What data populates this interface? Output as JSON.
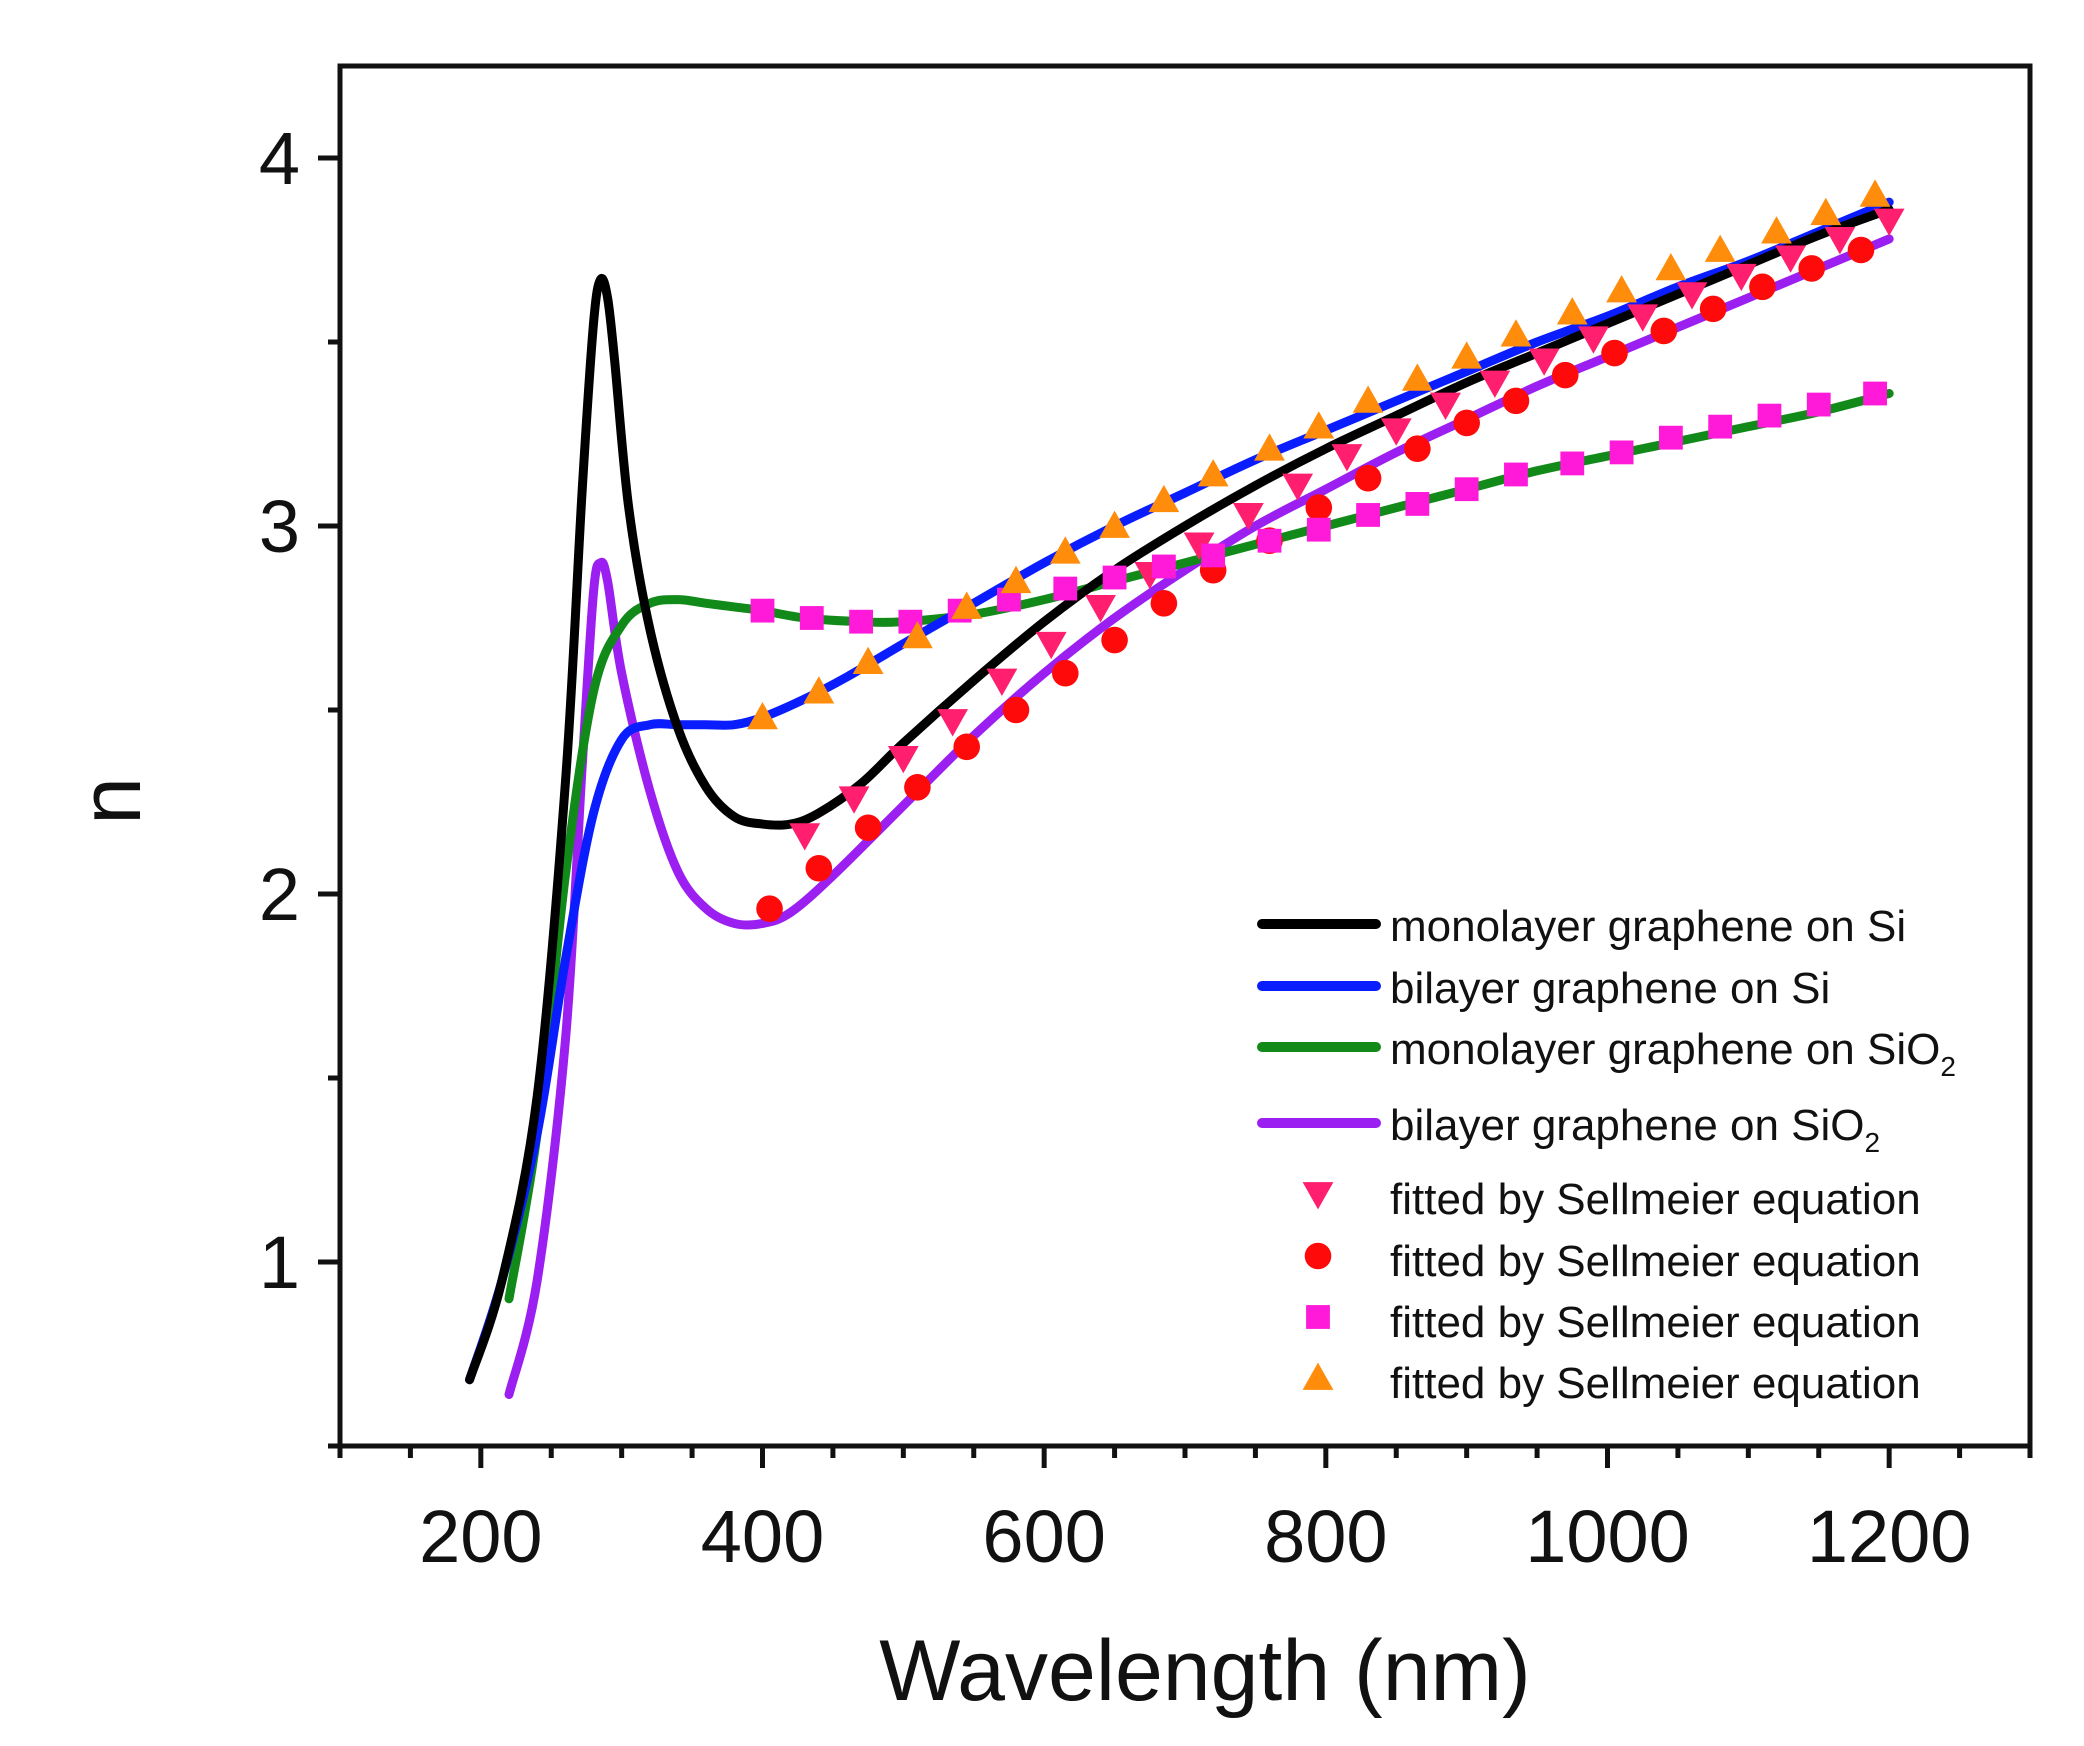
{
  "chart_data": {
    "type": "line",
    "title": "",
    "xlabel": "Wavelength (nm)",
    "ylabel": "n",
    "xlim": [
      100,
      1300
    ],
    "ylim": [
      0.5,
      4.25
    ],
    "xticks": [
      200,
      400,
      600,
      800,
      1000,
      1200
    ],
    "xtick_labels": [
      "200",
      "400",
      "600",
      "800",
      "1000",
      "1200"
    ],
    "yticks": [
      1,
      2,
      3,
      4
    ],
    "ytick_labels": [
      "1",
      "2",
      "3",
      "4"
    ],
    "grid": false,
    "legend_position": "bottom-right",
    "series": [
      {
        "name": "monolayer graphene on Si",
        "color": "#000000",
        "style": "line",
        "x": [
          192,
          215,
          240,
          260,
          272,
          280,
          285,
          290,
          295,
          305,
          320,
          340,
          360,
          380,
          400,
          420,
          440,
          470,
          500,
          550,
          600,
          650,
          700,
          750,
          800,
          850,
          900,
          950,
          1000,
          1050,
          1100,
          1150,
          1200
        ],
        "y": [
          0.68,
          0.95,
          1.45,
          2.3,
          3.1,
          3.55,
          3.67,
          3.62,
          3.45,
          3.05,
          2.72,
          2.45,
          2.29,
          2.21,
          2.19,
          2.19,
          2.22,
          2.3,
          2.41,
          2.58,
          2.74,
          2.88,
          3.0,
          3.11,
          3.21,
          3.3,
          3.39,
          3.47,
          3.55,
          3.63,
          3.71,
          3.79,
          3.86
        ]
      },
      {
        "name": "bilayer graphene on Si",
        "color": "#0a1dff",
        "style": "line",
        "x": [
          192,
          215,
          240,
          260,
          280,
          300,
          320,
          340,
          360,
          380,
          400,
          430,
          460,
          500,
          550,
          600,
          650,
          700,
          750,
          800,
          850,
          900,
          950,
          1000,
          1050,
          1100,
          1150,
          1200
        ],
        "y": [
          0.68,
          0.95,
          1.35,
          1.82,
          2.22,
          2.42,
          2.46,
          2.46,
          2.46,
          2.46,
          2.48,
          2.53,
          2.59,
          2.68,
          2.79,
          2.9,
          3.0,
          3.09,
          3.18,
          3.26,
          3.34,
          3.42,
          3.5,
          3.57,
          3.65,
          3.72,
          3.8,
          3.88
        ]
      },
      {
        "name": "monolayer graphene on SiO2",
        "color": "#128a1a",
        "style": "line",
        "x": [
          220,
          240,
          260,
          280,
          300,
          320,
          340,
          360,
          380,
          400,
          430,
          470,
          500,
          550,
          600,
          650,
          700,
          750,
          800,
          850,
          900,
          950,
          1000,
          1050,
          1100,
          1150,
          1200
        ],
        "y": [
          0.9,
          1.35,
          2.05,
          2.55,
          2.73,
          2.79,
          2.8,
          2.79,
          2.78,
          2.77,
          2.75,
          2.74,
          2.74,
          2.76,
          2.8,
          2.85,
          2.9,
          2.95,
          3.0,
          3.05,
          3.1,
          3.15,
          3.19,
          3.23,
          3.27,
          3.31,
          3.36
        ]
      },
      {
        "name": "bilayer graphene on SiO2",
        "color": "#9b1ff0",
        "style": "line",
        "x": [
          220,
          240,
          260,
          272,
          280,
          285,
          290,
          300,
          320,
          340,
          360,
          380,
          400,
          420,
          450,
          500,
          550,
          600,
          650,
          700,
          750,
          800,
          850,
          900,
          950,
          1000,
          1050,
          1100,
          1150,
          1200
        ],
        "y": [
          0.64,
          0.95,
          1.6,
          2.35,
          2.82,
          2.9,
          2.85,
          2.6,
          2.28,
          2.06,
          1.96,
          1.92,
          1.92,
          1.95,
          2.05,
          2.24,
          2.43,
          2.6,
          2.75,
          2.88,
          3.0,
          3.1,
          3.2,
          3.29,
          3.38,
          3.46,
          3.54,
          3.62,
          3.7,
          3.78
        ]
      },
      {
        "name": "fitted by Sellmeier equation",
        "color": "#ff1f6e",
        "marker": "triangle-down",
        "style": "markers",
        "x": [
          430,
          465,
          500,
          535,
          570,
          605,
          640,
          675,
          710,
          745,
          780,
          815,
          850,
          885,
          920,
          955,
          990,
          1025,
          1060,
          1095,
          1130,
          1165,
          1200
        ],
        "y": [
          2.16,
          2.26,
          2.37,
          2.47,
          2.58,
          2.68,
          2.78,
          2.87,
          2.95,
          3.03,
          3.11,
          3.19,
          3.26,
          3.33,
          3.39,
          3.45,
          3.51,
          3.57,
          3.63,
          3.68,
          3.73,
          3.78,
          3.83
        ]
      },
      {
        "name": "fitted by Sellmeier equation",
        "color": "#ff0a0a",
        "marker": "circle",
        "style": "markers",
        "x": [
          405,
          440,
          475,
          510,
          545,
          580,
          615,
          650,
          685,
          720,
          760,
          795,
          830,
          865,
          900,
          935,
          970,
          1005,
          1040,
          1075,
          1110,
          1145,
          1180
        ],
        "y": [
          1.96,
          2.07,
          2.18,
          2.29,
          2.4,
          2.5,
          2.6,
          2.69,
          2.79,
          2.88,
          2.96,
          3.05,
          3.13,
          3.21,
          3.28,
          3.34,
          3.41,
          3.47,
          3.53,
          3.59,
          3.65,
          3.7,
          3.75
        ]
      },
      {
        "name": "fitted by Sellmeier equation",
        "color": "#ff19d8",
        "marker": "square",
        "style": "markers",
        "x": [
          400,
          435,
          470,
          505,
          540,
          575,
          615,
          650,
          685,
          720,
          760,
          795,
          830,
          865,
          900,
          935,
          975,
          1010,
          1045,
          1080,
          1115,
          1150,
          1190
        ],
        "y": [
          2.77,
          2.75,
          2.74,
          2.74,
          2.77,
          2.8,
          2.83,
          2.86,
          2.89,
          2.92,
          2.96,
          2.99,
          3.03,
          3.06,
          3.1,
          3.14,
          3.17,
          3.2,
          3.24,
          3.27,
          3.3,
          3.33,
          3.36
        ]
      },
      {
        "name": "fitted by Sellmeier equation",
        "color": "#ff8c0a",
        "marker": "triangle-up",
        "style": "markers",
        "x": [
          400,
          440,
          475,
          510,
          545,
          580,
          615,
          650,
          685,
          720,
          760,
          795,
          830,
          865,
          900,
          935,
          975,
          1010,
          1045,
          1080,
          1120,
          1155,
          1190
        ],
        "y": [
          2.48,
          2.55,
          2.63,
          2.7,
          2.78,
          2.85,
          2.93,
          3.0,
          3.07,
          3.14,
          3.21,
          3.27,
          3.34,
          3.4,
          3.46,
          3.52,
          3.58,
          3.64,
          3.7,
          3.75,
          3.8,
          3.85,
          3.9
        ]
      }
    ],
    "legend": [
      {
        "label_main": "monolayer graphene on Si",
        "label_sub": "",
        "color": "#000000",
        "kind": "line"
      },
      {
        "label_main": "bilayer graphene on Si",
        "label_sub": "",
        "color": "#0a1dff",
        "kind": "line"
      },
      {
        "label_main": "monolayer graphene on SiO",
        "label_sub": "2",
        "color": "#128a1a",
        "kind": "line"
      },
      {
        "label_main": "bilayer graphene on SiO",
        "label_sub": "2",
        "color": "#9b1ff0",
        "kind": "line"
      },
      {
        "label_main": "fitted by Sellmeier equation",
        "label_sub": "",
        "color": "#ff1f6e",
        "kind": "triangle-down"
      },
      {
        "label_main": "fitted by Sellmeier equation",
        "label_sub": "",
        "color": "#ff0a0a",
        "kind": "circle"
      },
      {
        "label_main": "fitted by Sellmeier equation",
        "label_sub": "",
        "color": "#ff19d8",
        "kind": "square"
      },
      {
        "label_main": "fitted by Sellmeier equation",
        "label_sub": "",
        "color": "#ff8c0a",
        "kind": "triangle-up"
      }
    ]
  }
}
